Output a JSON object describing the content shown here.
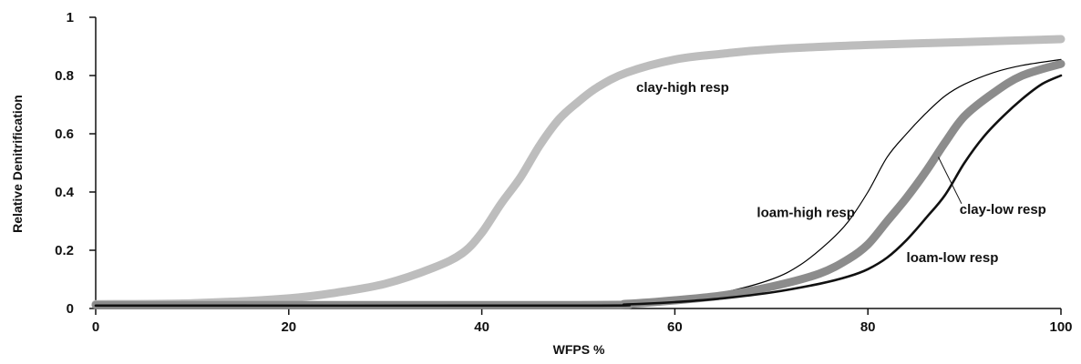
{
  "chart_data": {
    "type": "line",
    "title": "",
    "xlabel": "WFPS %",
    "ylabel": "Relative Denitrification",
    "xlim": [
      0,
      100
    ],
    "ylim": [
      0,
      1
    ],
    "x_ticks": [
      0,
      20,
      40,
      60,
      80,
      100
    ],
    "y_ticks": [
      0,
      0.2,
      0.4,
      0.6,
      0.8,
      1
    ],
    "y_tick_labels": [
      "0",
      "0.2",
      "0.4",
      "0.6",
      "0.8",
      "1"
    ],
    "grid": false,
    "legend": "none",
    "series": [
      {
        "name": "clay-high resp",
        "color": "#bdbdbd",
        "style": "thick-light-gray",
        "x": [
          0,
          10,
          20,
          25,
          30,
          35,
          38,
          40,
          42,
          44,
          46,
          48,
          50,
          52,
          55,
          60,
          65,
          70,
          80,
          90,
          100
        ],
        "values": [
          0.015,
          0.018,
          0.035,
          0.055,
          0.085,
          0.14,
          0.19,
          0.26,
          0.36,
          0.45,
          0.56,
          0.65,
          0.71,
          0.76,
          0.81,
          0.855,
          0.875,
          0.89,
          0.905,
          0.915,
          0.925
        ]
      },
      {
        "name": "loam-high resp",
        "color": "#000000",
        "style": "thin-black",
        "x": [
          0,
          50,
          55,
          60,
          65,
          70,
          73,
          76,
          78,
          80,
          82,
          84,
          86,
          88,
          90,
          93,
          96,
          100
        ],
        "values": [
          0.01,
          0.012,
          0.018,
          0.03,
          0.055,
          0.1,
          0.15,
          0.23,
          0.3,
          0.4,
          0.52,
          0.6,
          0.67,
          0.73,
          0.77,
          0.81,
          0.835,
          0.855
        ]
      },
      {
        "name": "clay-low resp",
        "color": "#8c8c8c",
        "style": "thick-dark-gray",
        "x": [
          0,
          50,
          55,
          60,
          65,
          70,
          75,
          78,
          80,
          82,
          84,
          86,
          88,
          90,
          93,
          96,
          100
        ],
        "values": [
          0.012,
          0.012,
          0.016,
          0.028,
          0.045,
          0.075,
          0.12,
          0.17,
          0.22,
          0.3,
          0.38,
          0.47,
          0.57,
          0.66,
          0.74,
          0.8,
          0.84
        ]
      },
      {
        "name": "loam-low resp",
        "color": "#111111",
        "style": "medium-black",
        "x": [
          0,
          50,
          55,
          60,
          65,
          70,
          75,
          78,
          80,
          82,
          84,
          86,
          88,
          90,
          92,
          94,
          96,
          98,
          100
        ],
        "values": [
          0.01,
          0.01,
          0.014,
          0.022,
          0.035,
          0.055,
          0.085,
          0.11,
          0.135,
          0.175,
          0.235,
          0.31,
          0.39,
          0.5,
          0.59,
          0.66,
          0.72,
          0.77,
          0.8
        ]
      }
    ],
    "annotations": [
      {
        "text": "clay-high resp",
        "x": 56,
        "y": 0.76,
        "anchor": "start"
      },
      {
        "text": "loam-high resp",
        "x": 68.5,
        "y": 0.33,
        "anchor": "start"
      },
      {
        "text": "clay-low resp",
        "x": 89.5,
        "y": 0.34,
        "anchor": "start"
      },
      {
        "text": "loam-low resp",
        "x": 84,
        "y": 0.175,
        "anchor": "start"
      }
    ]
  }
}
